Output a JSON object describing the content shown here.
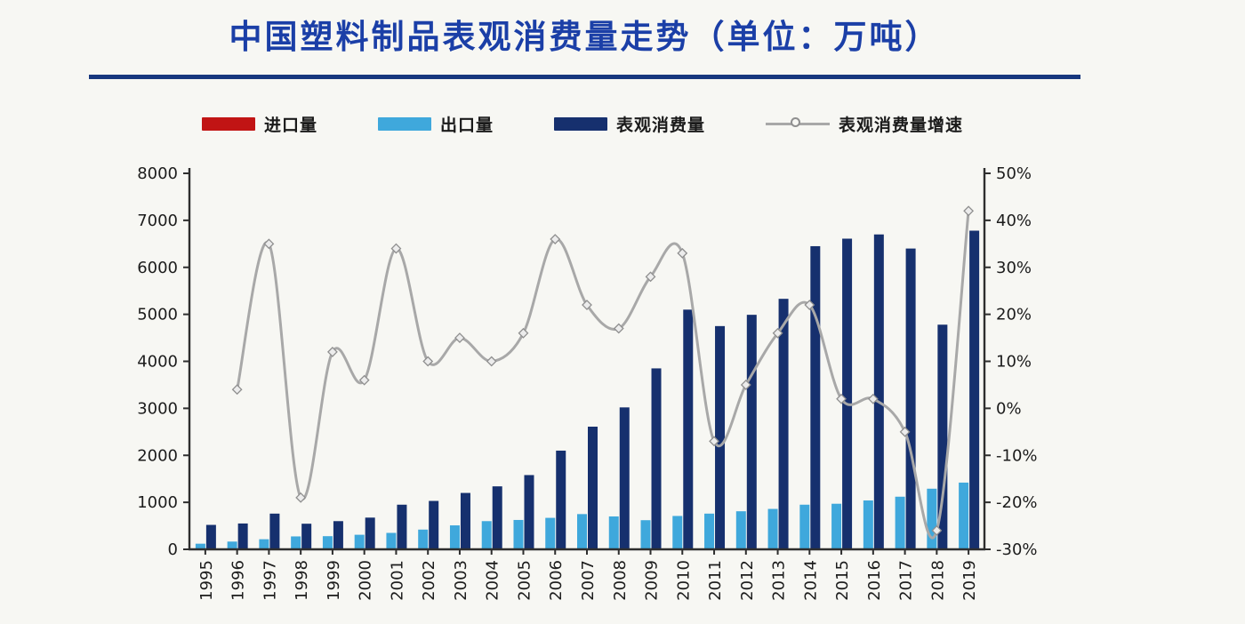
{
  "title": {
    "text": "中国塑料制品表观消费量走势（单位：万吨）",
    "color": "#1b3fa7"
  },
  "legend": {
    "items": [
      {
        "label": "进口量",
        "swatch": "box",
        "color": "#c11414"
      },
      {
        "label": "出口量",
        "swatch": "box",
        "color": "#3fa8dc"
      },
      {
        "label": "表观消费量",
        "swatch": "box",
        "color": "#16306e"
      },
      {
        "label": "表观消费量增速",
        "swatch": "line-marker",
        "color": "#a8a8a8"
      }
    ]
  },
  "chart_data": {
    "type": "combo-bar-line",
    "title": "中国塑料制品表观消费量走势（单位：万吨）",
    "x": [
      "1995",
      "1996",
      "1997",
      "1998",
      "1999",
      "2000",
      "2001",
      "2002",
      "2003",
      "2004",
      "2005",
      "2006",
      "2007",
      "2008",
      "2009",
      "2010",
      "2011",
      "2012",
      "2013",
      "2014",
      "2015",
      "2016",
      "2017",
      "2018",
      "2019"
    ],
    "bar_series": [
      {
        "name": "进口量",
        "color": "#c11414",
        "axis": "left",
        "values": null,
        "note": "bars too small to be visible at chart scale"
      },
      {
        "name": "出口量",
        "color": "#3fa8dc",
        "axis": "left",
        "values": [
          120,
          165,
          215,
          275,
          280,
          310,
          350,
          420,
          510,
          600,
          625,
          670,
          750,
          700,
          620,
          710,
          760,
          810,
          860,
          950,
          970,
          1040,
          1120,
          1290,
          1420
        ]
      },
      {
        "name": "表观消费量",
        "color": "#16306e",
        "axis": "left",
        "values": [
          520,
          550,
          760,
          545,
          600,
          675,
          950,
          1030,
          1200,
          1340,
          1580,
          2100,
          2610,
          3020,
          3850,
          5100,
          4750,
          4990,
          5330,
          6450,
          6610,
          6700,
          6400,
          4780,
          6780
        ]
      }
    ],
    "line_series": [
      {
        "name": "表观消费量增速",
        "color": "#a8a8a8",
        "marker": "diamond",
        "axis": "right",
        "values": [
          null,
          4,
          35,
          -19,
          12,
          6,
          34,
          10,
          15,
          10,
          16,
          36,
          22,
          17,
          28,
          33,
          -7,
          5,
          16,
          22,
          2,
          2,
          -5,
          -26,
          42
        ]
      }
    ],
    "left_axis": {
      "min": 0,
      "max": 8000,
      "tick_step": 1000,
      "unit": "万吨"
    },
    "right_axis": {
      "min": -30,
      "max": 50,
      "tick_step": 10,
      "unit": "%"
    },
    "legend_position": "top",
    "grid": false
  }
}
